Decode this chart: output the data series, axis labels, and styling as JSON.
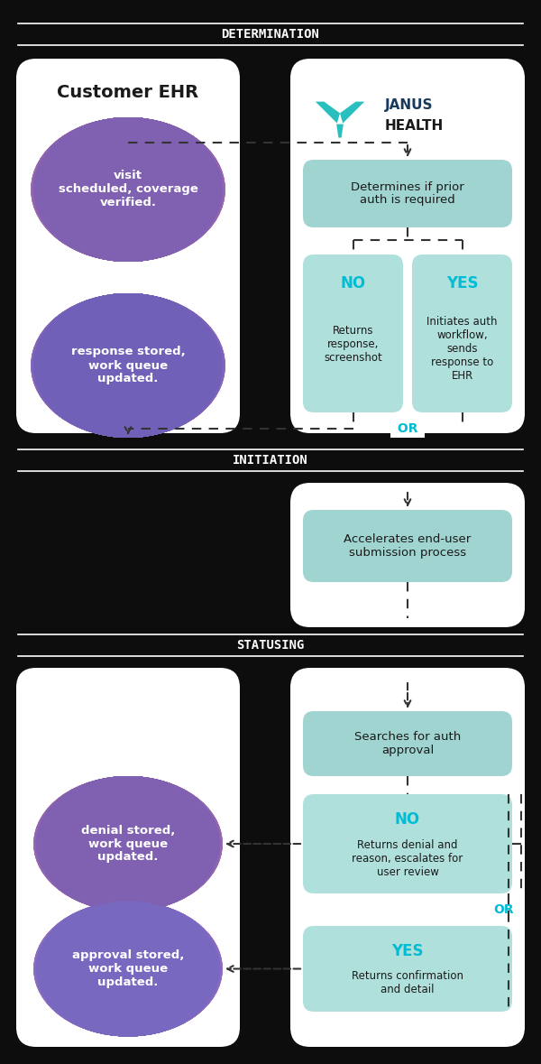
{
  "bg_color": "#0d0d0d",
  "section_label_color": "#ffffff",
  "section_line_color": "#ffffff",
  "teal_box_color": "#9fd4d0",
  "teal_box_color2": "#b0e0dc",
  "blob_text_color": "#ffffff",
  "cyan_text": "#00bcd4",
  "dark_text": "#1a1a1a",
  "janus_teal": "#2abfbf",
  "janus_navy": "#1a3a5c",
  "sections": [
    "DETERMINATION",
    "INITIATION",
    "STATUSING"
  ],
  "ehr_title": "Customer EHR",
  "blob1_text": "visit\nscheduled, coverage\nverified.",
  "blob2_text": "response stored,\nwork queue\nupdated.",
  "determines_text": "Determines if prior\nauth is required",
  "or_text": "OR",
  "accel_text": "Accelerates end-user\nsubmission process",
  "search_text": "Searches for auth\napproval",
  "or2_text": "OR",
  "denial_text": "denial stored,\nwork queue\nupdated.",
  "approval_text": "approval stored,\nwork queue\nupdated.",
  "blob1_top": "#c07ab8",
  "blob1_bot": "#8060b0",
  "blob2_top": "#b070c0",
  "blob2_bot": "#7060b8",
  "blob3_top": "#c07ab8",
  "blob3_bot": "#8060b0",
  "blob4_top": "#b878c8",
  "blob4_bot": "#7868c0"
}
